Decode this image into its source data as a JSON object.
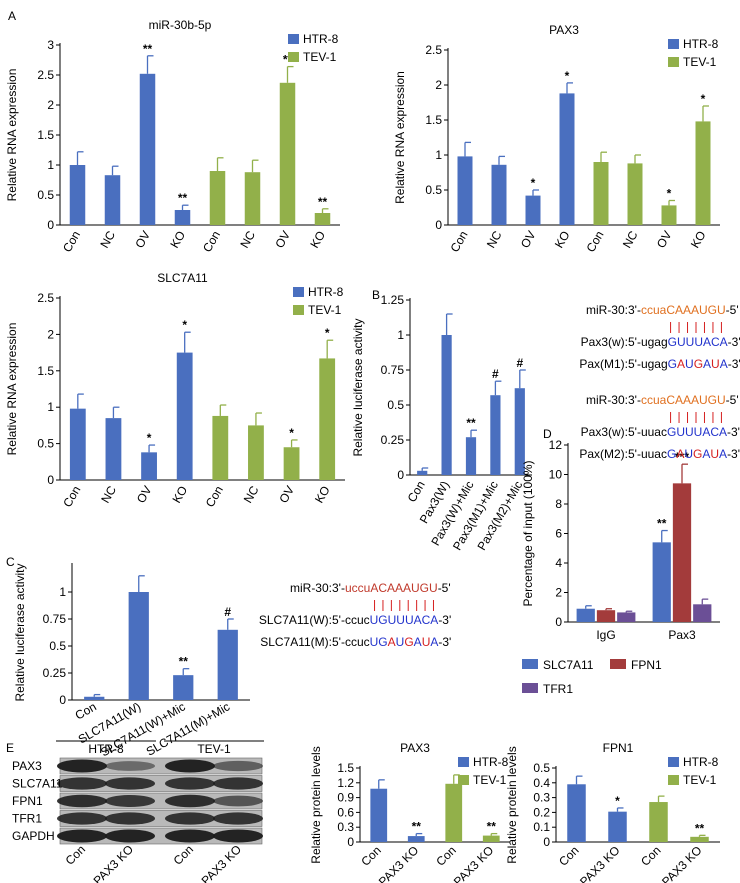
{
  "chart_data": [
    {
      "type": "bar",
      "panel": "A",
      "title": "miR-30b-5p",
      "y_label": "Relative RNA expression",
      "categories": [
        "Con",
        "NC",
        "OV",
        "KO",
        "Con",
        "NC",
        "OV",
        "KO"
      ],
      "series": [
        {
          "name": "HTR-8",
          "color": "#4a6fbf",
          "values": [
            1.0,
            0.83,
            2.52,
            0.25,
            null,
            null,
            null,
            null
          ],
          "errors": [
            0.22,
            0.15,
            0.3,
            0.08,
            null,
            null,
            null,
            null
          ],
          "significance": [
            null,
            null,
            "**",
            "**",
            null,
            null,
            null,
            null
          ]
        },
        {
          "name": "TEV-1",
          "color": "#92b04a",
          "values": [
            null,
            null,
            null,
            null,
            0.9,
            0.88,
            2.37,
            0.2
          ],
          "errors": [
            null,
            null,
            null,
            null,
            0.22,
            0.2,
            0.27,
            0.07
          ],
          "significance": [
            null,
            null,
            null,
            null,
            null,
            null,
            "**",
            "**"
          ]
        }
      ],
      "ylim": [
        0,
        3
      ],
      "yticks": [
        0,
        0.5,
        1,
        1.5,
        2,
        2.5,
        3
      ],
      "legend": "upper right"
    },
    {
      "type": "bar",
      "title": "PAX3",
      "y_label": "Relative RNA expression",
      "categories": [
        "Con",
        "NC",
        "OV",
        "KO",
        "Con",
        "NC",
        "OV",
        "KO"
      ],
      "series": [
        {
          "name": "HTR-8",
          "color": "#4a6fbf",
          "values": [
            0.98,
            0.86,
            0.42,
            1.88,
            null,
            null,
            null,
            null
          ],
          "errors": [
            0.2,
            0.12,
            0.08,
            0.15,
            null,
            null,
            null,
            null
          ],
          "significance": [
            null,
            null,
            "*",
            "*",
            null,
            null,
            null,
            null
          ]
        },
        {
          "name": "TEV-1",
          "color": "#92b04a",
          "values": [
            null,
            null,
            null,
            null,
            0.9,
            0.88,
            0.28,
            1.48
          ],
          "errors": [
            null,
            null,
            null,
            null,
            0.14,
            0.12,
            0.07,
            0.22
          ],
          "significance": [
            null,
            null,
            null,
            null,
            null,
            null,
            "*",
            "*"
          ]
        }
      ],
      "ylim": [
        0,
        2.5
      ],
      "yticks": [
        0,
        0.5,
        1,
        1.5,
        2,
        2.5
      ],
      "legend": "upper right"
    },
    {
      "type": "bar",
      "title": "SLC7A11",
      "y_label": "Relative RNA expression",
      "categories": [
        "Con",
        "NC",
        "OV",
        "KO",
        "Con",
        "NC",
        "OV",
        "KO"
      ],
      "series": [
        {
          "name": "HTR-8",
          "color": "#4a6fbf",
          "values": [
            0.98,
            0.85,
            0.38,
            1.75,
            null,
            null,
            null,
            null
          ],
          "errors": [
            0.2,
            0.15,
            0.1,
            0.28,
            null,
            null,
            null,
            null
          ],
          "significance": [
            null,
            null,
            "*",
            "*",
            null,
            null,
            null,
            null
          ]
        },
        {
          "name": "TEV-1",
          "color": "#92b04a",
          "values": [
            null,
            null,
            null,
            null,
            0.88,
            0.75,
            0.45,
            1.67
          ],
          "errors": [
            null,
            null,
            null,
            null,
            0.15,
            0.17,
            0.1,
            0.25
          ],
          "significance": [
            null,
            null,
            null,
            null,
            null,
            null,
            "*",
            "*"
          ]
        }
      ],
      "ylim": [
        0,
        2.5
      ],
      "yticks": [
        0,
        0.5,
        1,
        1.5,
        2,
        2.5
      ],
      "legend": "upper right"
    },
    {
      "type": "bar",
      "panel": "B",
      "y_label": "Relative luciferase activity",
      "categories": [
        "Con",
        "Pax3(W)",
        "Pax3(W)+Mic",
        "Pax3(M1)+Mic",
        "Pax3(M2)+Mic"
      ],
      "series": [
        {
          "color": "#4a6fbf",
          "values": [
            0.03,
            1.0,
            0.27,
            0.57,
            0.62
          ],
          "errors": [
            0.02,
            0.15,
            0.05,
            0.1,
            0.13
          ],
          "significance": [
            null,
            null,
            "**",
            "#",
            "#"
          ]
        }
      ],
      "ylim": [
        0,
        1.25
      ],
      "yticks": [
        0,
        0.25,
        0.5,
        0.75,
        1,
        1.25
      ]
    },
    {
      "type": "bar",
      "panel": "C",
      "y_label": "Relative luciferase activity",
      "categories": [
        "Con",
        "SLC7A11(W)",
        "SLC7A11(W)+Mic",
        "SLC7A11(M)+Mic"
      ],
      "series": [
        {
          "color": "#4a6fbf",
          "values": [
            0.03,
            1.0,
            0.23,
            0.65
          ],
          "errors": [
            0.02,
            0.15,
            0.06,
            0.1
          ],
          "significance": [
            null,
            null,
            "**",
            "#"
          ]
        }
      ],
      "ylim": [
        0,
        1.25
      ],
      "yticks": [
        0,
        0.25,
        0.5,
        0.75,
        1
      ]
    },
    {
      "type": "bar",
      "panel": "D",
      "y_label": "Percentage of input (100%)",
      "categories": [
        "IgG",
        "Pax3"
      ],
      "series": [
        {
          "name": "SLC7A11",
          "color": "#4a6fbf",
          "values": [
            0.9,
            5.4
          ],
          "errors": [
            0.2,
            0.8
          ],
          "significance": [
            null,
            "**"
          ]
        },
        {
          "name": "FPN1",
          "color": "#a33b3b",
          "values": [
            0.8,
            9.4
          ],
          "errors": [
            0.1,
            1.3
          ],
          "significance": [
            null,
            "***"
          ]
        },
        {
          "name": "TFR1",
          "color": "#6b4f96",
          "values": [
            0.65,
            1.2
          ],
          "errors": [
            0.08,
            0.35
          ],
          "significance": [
            null,
            null
          ]
        }
      ],
      "ylim": [
        0,
        12
      ],
      "yticks": [
        0,
        2,
        4,
        6,
        8,
        10,
        12
      ],
      "legend": "below"
    },
    {
      "type": "bar",
      "title": "PAX3",
      "y_label": "Relative protein levels",
      "categories": [
        "Con",
        "PAX3 KO",
        "Con",
        "PAX3 KO"
      ],
      "series": [
        {
          "name": "HTR-8",
          "color": "#4a6fbf",
          "values": [
            1.08,
            0.12,
            null,
            null
          ],
          "errors": [
            0.18,
            0.05,
            null,
            null
          ],
          "significance": [
            null,
            "**",
            null,
            null
          ]
        },
        {
          "name": "TEV-1",
          "color": "#92b04a",
          "values": [
            null,
            null,
            1.18,
            0.13
          ],
          "errors": [
            null,
            null,
            0.18,
            0.04
          ],
          "significance": [
            null,
            null,
            null,
            "**"
          ]
        }
      ],
      "ylim": [
        0,
        1.5
      ],
      "yticks": [
        0,
        0.3,
        0.6,
        0.9,
        1.2,
        1.5
      ],
      "legend": "upper right"
    },
    {
      "type": "bar",
      "title": "FPN1",
      "y_label": "Relative protein levels",
      "categories": [
        "Con",
        "PAX3 KO",
        "Con",
        "PAX3 KO"
      ],
      "series": [
        {
          "name": "HTR-8",
          "color": "#4a6fbf",
          "values": [
            0.39,
            0.205,
            null,
            null
          ],
          "errors": [
            0.055,
            0.025,
            null,
            null
          ],
          "significance": [
            null,
            "*",
            null,
            null
          ]
        },
        {
          "name": "TEV-1",
          "color": "#92b04a",
          "values": [
            null,
            null,
            0.27,
            0.035
          ],
          "errors": [
            null,
            null,
            0.04,
            0.01
          ],
          "significance": [
            null,
            null,
            null,
            "**"
          ]
        }
      ],
      "ylim": [
        0,
        0.5
      ],
      "yticks": [
        0,
        0.1,
        0.2,
        0.3,
        0.4,
        0.5
      ],
      "legend": "upper right"
    }
  ],
  "sequence_panels": [
    {
      "groups": [
        [
          {
            "label": "miR-30:",
            "parts": [
              {
                "text": "3'-",
                "color": "#000000"
              },
              {
                "text": "ccua",
                "color": "#e07020"
              },
              {
                "text": "CAAAUGU",
                "color": "#e07020"
              },
              {
                "text": "-5'",
                "color": "#000000"
              }
            ]
          },
          {
            "label": "Pax3(w):",
            "parts": [
              {
                "text": "5'-ugag",
                "color": "#000000"
              },
              {
                "text": "GUUUACA",
                "color": "#2233cc"
              },
              {
                "text": "-3'",
                "color": "#000000"
              }
            ]
          },
          {
            "label": "Pax(M1):",
            "parts": [
              {
                "text": "5'-ugag",
                "color": "#000000"
              },
              {
                "text": "G",
                "color": "#2233cc"
              },
              {
                "text": "A",
                "color": "#d62020"
              },
              {
                "text": "U",
                "color": "#2233cc"
              },
              {
                "text": "G",
                "color": "#d62020"
              },
              {
                "text": "A",
                "color": "#2233cc"
              },
              {
                "text": "U",
                "color": "#d62020"
              },
              {
                "text": "A",
                "color": "#2233cc"
              },
              {
                "text": "-3'",
                "color": "#000000"
              }
            ]
          }
        ],
        [
          {
            "label": "miR-30:",
            "parts": [
              {
                "text": "3'-",
                "color": "#000000"
              },
              {
                "text": "ccua",
                "color": "#e07020"
              },
              {
                "text": "CAAAUGU",
                "color": "#e07020"
              },
              {
                "text": "-5'",
                "color": "#000000"
              }
            ]
          },
          {
            "label": "Pax3(w):",
            "parts": [
              {
                "text": "5'-uuac",
                "color": "#000000"
              },
              {
                "text": "GUUUACA",
                "color": "#2233cc"
              },
              {
                "text": "-3'",
                "color": "#000000"
              }
            ]
          },
          {
            "label": "Pax(M2):",
            "parts": [
              {
                "text": "5'-uuac",
                "color": "#000000"
              },
              {
                "text": "G",
                "color": "#2233cc"
              },
              {
                "text": "A",
                "color": "#d62020"
              },
              {
                "text": "U",
                "color": "#2233cc"
              },
              {
                "text": "G",
                "color": "#d62020"
              },
              {
                "text": "A",
                "color": "#2233cc"
              },
              {
                "text": "U",
                "color": "#d62020"
              },
              {
                "text": "A",
                "color": "#2233cc"
              },
              {
                "text": "-3'",
                "color": "#000000"
              }
            ]
          }
        ]
      ]
    },
    {
      "groups": [
        [
          {
            "label": "miR-30:",
            "parts": [
              {
                "text": "3'-",
                "color": "#000000"
              },
              {
                "text": "uccu",
                "color": "#c0392b"
              },
              {
                "text": "ACAAAUGU",
                "color": "#c0392b"
              },
              {
                "text": "-5'",
                "color": "#000000"
              }
            ]
          },
          {
            "label": "SLC7A11(W):",
            "parts": [
              {
                "text": "5'-ccuc",
                "color": "#000000"
              },
              {
                "text": "UGUUUACA",
                "color": "#2233cc"
              },
              {
                "text": "-3'",
                "color": "#000000"
              }
            ]
          },
          {
            "label": "SLC7A11(M):",
            "parts": [
              {
                "text": "5'-ccuc",
                "color": "#000000"
              },
              {
                "text": "UG",
                "color": "#2233cc"
              },
              {
                "text": "A",
                "color": "#d62020"
              },
              {
                "text": "U",
                "color": "#2233cc"
              },
              {
                "text": "G",
                "color": "#d62020"
              },
              {
                "text": "A",
                "color": "#2233cc"
              },
              {
                "text": "U",
                "color": "#d62020"
              },
              {
                "text": "A",
                "color": "#2233cc"
              },
              {
                "text": "-3'",
                "color": "#000000"
              }
            ]
          }
        ]
      ]
    }
  ],
  "blot": {
    "panel": "E",
    "groups": [
      "HTR-8",
      "TEV-1"
    ],
    "rows": [
      "PAX3",
      "SLC7A11",
      "FPN1",
      "TFR1",
      "GAPDH"
    ],
    "lanes": [
      "Con",
      "PAX3 KO",
      "Con",
      "PAX3 KO"
    ]
  }
}
